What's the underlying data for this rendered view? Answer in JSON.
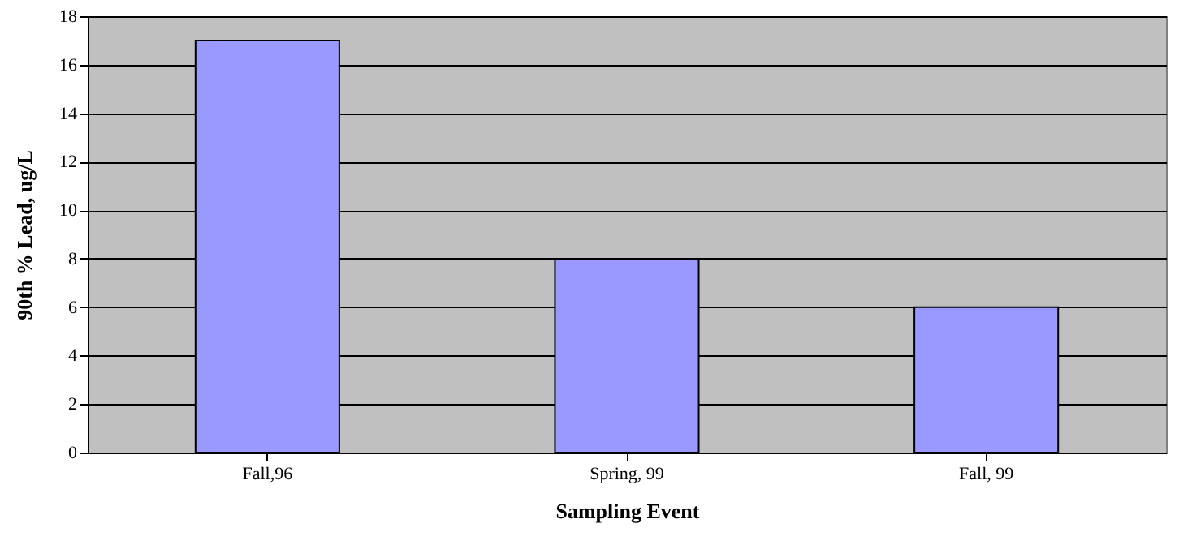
{
  "chart_data": {
    "type": "bar",
    "xlabel": "Sampling Event",
    "ylabel": "90th % Lead, ug/L",
    "categories": [
      "Fall,96",
      "Spring, 99",
      "Fall, 99"
    ],
    "values": [
      17,
      8,
      6
    ],
    "color": "#9999ff",
    "ylim": [
      0,
      18
    ],
    "yticks": [
      0,
      2,
      4,
      6,
      8,
      10,
      12,
      14,
      16,
      18
    ],
    "grid": "y"
  }
}
